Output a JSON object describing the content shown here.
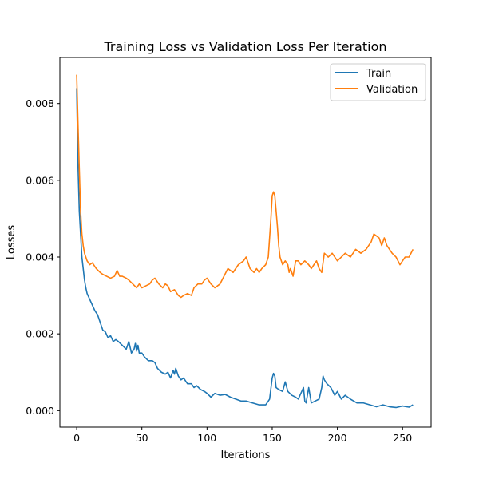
{
  "chart_data": {
    "type": "line",
    "title": "Training Loss vs Validation Loss Per Iteration",
    "xlabel": "Iterations",
    "ylabel": "Losses",
    "xlim": [
      -12.9,
      271.9
    ],
    "ylim": [
      -0.00043,
      0.0092
    ],
    "xticks": [
      0,
      50,
      100,
      150,
      200,
      250
    ],
    "xtick_labels": [
      "0",
      "50",
      "100",
      "150",
      "200",
      "250"
    ],
    "yticks": [
      0.0,
      0.002,
      0.004,
      0.006,
      0.008
    ],
    "ytick_labels": [
      "0.000",
      "0.002",
      "0.004",
      "0.006",
      "0.008"
    ],
    "grid": false,
    "legend": {
      "position": "top-right",
      "entries": [
        "Train",
        "Validation"
      ]
    },
    "colors": {
      "train": "#1f77b4",
      "validation": "#ff7f0e"
    },
    "series": [
      {
        "name": "Train",
        "color": "#1f77b4",
        "x": [
          0,
          1,
          2,
          3,
          4,
          5,
          6,
          7,
          8,
          10,
          12,
          14,
          16,
          18,
          20,
          22,
          24,
          26,
          28,
          30,
          32,
          35,
          38,
          40,
          42,
          44,
          45,
          46,
          47,
          48,
          50,
          52,
          55,
          58,
          60,
          62,
          65,
          68,
          70,
          72,
          74,
          75,
          76,
          78,
          80,
          82,
          85,
          88,
          90,
          92,
          95,
          98,
          100,
          103,
          106,
          110,
          114,
          118,
          122,
          126,
          130,
          135,
          140,
          145,
          148,
          150,
          151,
          152,
          153,
          155,
          158,
          160,
          162,
          165,
          168,
          170,
          172,
          174,
          175,
          176,
          178,
          180,
          183,
          186,
          188,
          189,
          190,
          192,
          195,
          198,
          200,
          203,
          206,
          210,
          215,
          220,
          225,
          230,
          235,
          240,
          245,
          250,
          253,
          255,
          258
        ],
        "y": [
          0.0084,
          0.0064,
          0.0052,
          0.0046,
          0.004,
          0.0037,
          0.0034,
          0.0032,
          0.00305,
          0.0029,
          0.00275,
          0.0026,
          0.0025,
          0.0023,
          0.0021,
          0.00205,
          0.0019,
          0.00195,
          0.0018,
          0.00185,
          0.0018,
          0.0017,
          0.0016,
          0.0018,
          0.0015,
          0.0016,
          0.00175,
          0.00155,
          0.0017,
          0.0015,
          0.0015,
          0.0014,
          0.0013,
          0.0013,
          0.00125,
          0.0011,
          0.001,
          0.00095,
          0.001,
          0.00085,
          0.00105,
          0.00095,
          0.0011,
          0.0009,
          0.0008,
          0.00085,
          0.0007,
          0.0007,
          0.0006,
          0.00065,
          0.00055,
          0.0005,
          0.00045,
          0.00035,
          0.00045,
          0.0004,
          0.00042,
          0.00035,
          0.0003,
          0.00025,
          0.00025,
          0.0002,
          0.00015,
          0.00015,
          0.0003,
          0.00085,
          0.00097,
          0.0009,
          0.0006,
          0.00055,
          0.0005,
          0.00075,
          0.0005,
          0.0004,
          0.00035,
          0.0003,
          0.00045,
          0.0006,
          0.00025,
          0.0002,
          0.0006,
          0.0002,
          0.00025,
          0.0003,
          0.0006,
          0.0009,
          0.0008,
          0.0007,
          0.0006,
          0.0004,
          0.0005,
          0.0003,
          0.0004,
          0.0003,
          0.0002,
          0.0002,
          0.00015,
          0.0001,
          0.00015,
          0.0001,
          8e-05,
          0.00012,
          0.0001,
          9e-05,
          0.00015
        ]
      },
      {
        "name": "Validation",
        "color": "#ff7f0e",
        "x": [
          0,
          1,
          2,
          3,
          4,
          5,
          6,
          8,
          10,
          12,
          15,
          18,
          20,
          23,
          26,
          29,
          31,
          33,
          35,
          38,
          40,
          43,
          46,
          48,
          50,
          53,
          56,
          58,
          60,
          63,
          66,
          68,
          70,
          72,
          75,
          78,
          80,
          82,
          85,
          88,
          90,
          93,
          96,
          98,
          100,
          103,
          106,
          110,
          113,
          116,
          120,
          124,
          128,
          130,
          133,
          136,
          138,
          140,
          142,
          145,
          147,
          149,
          150,
          151,
          152,
          153,
          154,
          155,
          156,
          158,
          160,
          162,
          163,
          164,
          166,
          168,
          170,
          172,
          175,
          178,
          180,
          182,
          184,
          186,
          188,
          190,
          193,
          196,
          200,
          203,
          206,
          210,
          214,
          218,
          222,
          226,
          228,
          230,
          232,
          234,
          236,
          238,
          240,
          242,
          245,
          248,
          250,
          252,
          255,
          258
        ],
        "y": [
          0.00875,
          0.0075,
          0.0063,
          0.0052,
          0.0046,
          0.0043,
          0.0041,
          0.0039,
          0.0038,
          0.00385,
          0.0037,
          0.0036,
          0.00355,
          0.0035,
          0.00345,
          0.0035,
          0.00365,
          0.0035,
          0.0035,
          0.00345,
          0.0034,
          0.0033,
          0.0032,
          0.0033,
          0.0032,
          0.00325,
          0.0033,
          0.0034,
          0.00345,
          0.0033,
          0.0032,
          0.0033,
          0.00325,
          0.0031,
          0.00315,
          0.003,
          0.00295,
          0.003,
          0.00305,
          0.003,
          0.0032,
          0.0033,
          0.0033,
          0.0034,
          0.00345,
          0.0033,
          0.0032,
          0.0033,
          0.0035,
          0.0037,
          0.0036,
          0.0038,
          0.0039,
          0.004,
          0.0037,
          0.0036,
          0.0037,
          0.0036,
          0.0037,
          0.0038,
          0.004,
          0.005,
          0.0056,
          0.0057,
          0.0056,
          0.0052,
          0.0048,
          0.0043,
          0.004,
          0.0038,
          0.0039,
          0.0038,
          0.0036,
          0.0037,
          0.0035,
          0.0039,
          0.0039,
          0.0038,
          0.0039,
          0.0038,
          0.0037,
          0.0038,
          0.0039,
          0.0037,
          0.0036,
          0.0041,
          0.004,
          0.0041,
          0.0039,
          0.004,
          0.0041,
          0.004,
          0.0042,
          0.0041,
          0.0042,
          0.0044,
          0.0046,
          0.00455,
          0.0045,
          0.0043,
          0.0045,
          0.0043,
          0.0042,
          0.0041,
          0.004,
          0.0038,
          0.0039,
          0.004,
          0.004,
          0.0042
        ]
      }
    ]
  }
}
